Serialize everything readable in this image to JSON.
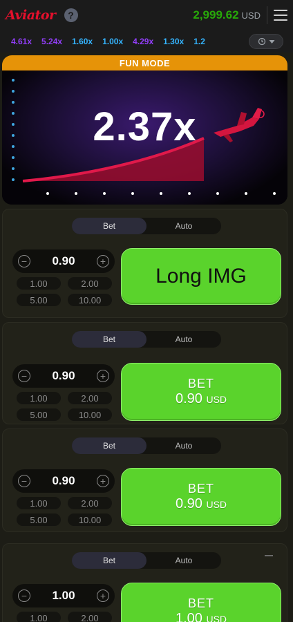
{
  "header": {
    "logo": "Aviator",
    "help_glyph": "?",
    "balance": "2,999.62",
    "currency": "USD"
  },
  "history": {
    "items": [
      {
        "value": "4.61x",
        "color": "#913ef8"
      },
      {
        "value": "5.24x",
        "color": "#913ef8"
      },
      {
        "value": "1.60x",
        "color": "#34b4ff"
      },
      {
        "value": "1.00x",
        "color": "#34b4ff"
      },
      {
        "value": "4.29x",
        "color": "#913ef8"
      },
      {
        "value": "1.30x",
        "color": "#34b4ff"
      },
      {
        "value": "1.2",
        "color": "#34b4ff"
      }
    ]
  },
  "game": {
    "banner": "FUN MODE",
    "multiplier": "2.37x"
  },
  "panels": [
    {
      "tabs": [
        "Bet",
        "Auto"
      ],
      "stake": "0.90",
      "quick": [
        "1.00",
        "2.00",
        "5.00",
        "10.00"
      ],
      "button_text": "Long IMG"
    },
    {
      "tabs": [
        "Bet",
        "Auto"
      ],
      "stake": "0.90",
      "quick": [
        "1.00",
        "2.00",
        "5.00",
        "10.00"
      ],
      "button_line1": "BET",
      "button_amount": "0.90",
      "button_currency": "USD"
    },
    {
      "tabs": [
        "Bet",
        "Auto"
      ],
      "stake": "0.90",
      "quick": [
        "1.00",
        "2.00",
        "5.00",
        "10.00"
      ],
      "button_line1": "BET",
      "button_amount": "0.90",
      "button_currency": "USD"
    },
    {
      "tabs": [
        "Bet",
        "Auto"
      ],
      "stake": "1.00",
      "quick": [
        "1.00",
        "2.00"
      ],
      "button_line1": "BET",
      "button_amount": "1.00",
      "button_currency": "USD"
    }
  ],
  "colors": {
    "accent_green": "#5ad32c",
    "balance_green": "#28a909",
    "banner_orange": "#e69308",
    "logo_red": "#e5102c"
  },
  "icons": [
    "help-icon",
    "menu-icon",
    "history-icon",
    "plane-icon",
    "minus-icon",
    "plus-icon"
  ]
}
